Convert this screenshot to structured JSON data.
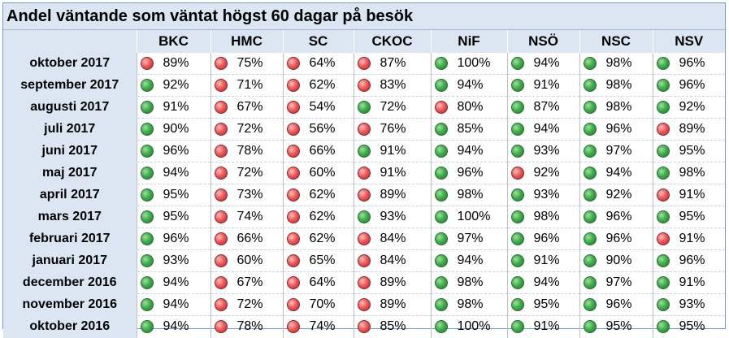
{
  "title": "Andel väntande som väntat högst 60 dagar på besök",
  "columns": [
    "BKC",
    "HMC",
    "SC",
    "CKOC",
    "NiF",
    "NSÖ",
    "NSC",
    "NSV"
  ],
  "rows": [
    {
      "month": "oktober 2017",
      "cells": [
        {
          "value": "89%",
          "status": "red"
        },
        {
          "value": "75%",
          "status": "red"
        },
        {
          "value": "64%",
          "status": "red"
        },
        {
          "value": "87%",
          "status": "red"
        },
        {
          "value": "100%",
          "status": "green"
        },
        {
          "value": "94%",
          "status": "green"
        },
        {
          "value": "98%",
          "status": "green"
        },
        {
          "value": "96%",
          "status": "green"
        }
      ]
    },
    {
      "month": "september 2017",
      "cells": [
        {
          "value": "92%",
          "status": "green"
        },
        {
          "value": "71%",
          "status": "red"
        },
        {
          "value": "62%",
          "status": "red"
        },
        {
          "value": "83%",
          "status": "red"
        },
        {
          "value": "94%",
          "status": "green"
        },
        {
          "value": "91%",
          "status": "green"
        },
        {
          "value": "98%",
          "status": "green"
        },
        {
          "value": "96%",
          "status": "green"
        }
      ]
    },
    {
      "month": "augusti 2017",
      "cells": [
        {
          "value": "91%",
          "status": "green"
        },
        {
          "value": "67%",
          "status": "red"
        },
        {
          "value": "54%",
          "status": "red"
        },
        {
          "value": "72%",
          "status": "green"
        },
        {
          "value": "80%",
          "status": "red"
        },
        {
          "value": "87%",
          "status": "green"
        },
        {
          "value": "98%",
          "status": "green"
        },
        {
          "value": "92%",
          "status": "green"
        }
      ]
    },
    {
      "month": "juli 2017",
      "cells": [
        {
          "value": "90%",
          "status": "green"
        },
        {
          "value": "72%",
          "status": "red"
        },
        {
          "value": "56%",
          "status": "red"
        },
        {
          "value": "76%",
          "status": "red"
        },
        {
          "value": "85%",
          "status": "green"
        },
        {
          "value": "94%",
          "status": "green"
        },
        {
          "value": "96%",
          "status": "green"
        },
        {
          "value": "89%",
          "status": "red"
        }
      ]
    },
    {
      "month": "juni 2017",
      "cells": [
        {
          "value": "96%",
          "status": "green"
        },
        {
          "value": "78%",
          "status": "red"
        },
        {
          "value": "66%",
          "status": "red"
        },
        {
          "value": "91%",
          "status": "green"
        },
        {
          "value": "94%",
          "status": "green"
        },
        {
          "value": "93%",
          "status": "green"
        },
        {
          "value": "97%",
          "status": "green"
        },
        {
          "value": "95%",
          "status": "green"
        }
      ]
    },
    {
      "month": "maj 2017",
      "cells": [
        {
          "value": "94%",
          "status": "green"
        },
        {
          "value": "72%",
          "status": "red"
        },
        {
          "value": "60%",
          "status": "red"
        },
        {
          "value": "91%",
          "status": "red"
        },
        {
          "value": "96%",
          "status": "green"
        },
        {
          "value": "92%",
          "status": "red"
        },
        {
          "value": "94%",
          "status": "green"
        },
        {
          "value": "98%",
          "status": "green"
        }
      ]
    },
    {
      "month": "april 2017",
      "cells": [
        {
          "value": "95%",
          "status": "green"
        },
        {
          "value": "73%",
          "status": "red"
        },
        {
          "value": "62%",
          "status": "red"
        },
        {
          "value": "89%",
          "status": "red"
        },
        {
          "value": "98%",
          "status": "green"
        },
        {
          "value": "93%",
          "status": "green"
        },
        {
          "value": "92%",
          "status": "green"
        },
        {
          "value": "91%",
          "status": "red"
        }
      ]
    },
    {
      "month": "mars 2017",
      "cells": [
        {
          "value": "95%",
          "status": "green"
        },
        {
          "value": "74%",
          "status": "red"
        },
        {
          "value": "62%",
          "status": "red"
        },
        {
          "value": "93%",
          "status": "green"
        },
        {
          "value": "100%",
          "status": "green"
        },
        {
          "value": "98%",
          "status": "green"
        },
        {
          "value": "96%",
          "status": "green"
        },
        {
          "value": "95%",
          "status": "green"
        }
      ]
    },
    {
      "month": "februari 2017",
      "cells": [
        {
          "value": "96%",
          "status": "green"
        },
        {
          "value": "66%",
          "status": "red"
        },
        {
          "value": "62%",
          "status": "red"
        },
        {
          "value": "84%",
          "status": "red"
        },
        {
          "value": "97%",
          "status": "green"
        },
        {
          "value": "96%",
          "status": "green"
        },
        {
          "value": "96%",
          "status": "green"
        },
        {
          "value": "91%",
          "status": "red"
        }
      ]
    },
    {
      "month": "januari 2017",
      "cells": [
        {
          "value": "93%",
          "status": "green"
        },
        {
          "value": "60%",
          "status": "red"
        },
        {
          "value": "65%",
          "status": "red"
        },
        {
          "value": "84%",
          "status": "red"
        },
        {
          "value": "94%",
          "status": "green"
        },
        {
          "value": "91%",
          "status": "green"
        },
        {
          "value": "90%",
          "status": "green"
        },
        {
          "value": "96%",
          "status": "green"
        }
      ]
    },
    {
      "month": "december 2016",
      "cells": [
        {
          "value": "94%",
          "status": "green"
        },
        {
          "value": "67%",
          "status": "red"
        },
        {
          "value": "64%",
          "status": "red"
        },
        {
          "value": "89%",
          "status": "red"
        },
        {
          "value": "98%",
          "status": "green"
        },
        {
          "value": "94%",
          "status": "green"
        },
        {
          "value": "97%",
          "status": "green"
        },
        {
          "value": "91%",
          "status": "green"
        }
      ]
    },
    {
      "month": "november 2016",
      "cells": [
        {
          "value": "94%",
          "status": "green"
        },
        {
          "value": "72%",
          "status": "red"
        },
        {
          "value": "70%",
          "status": "red"
        },
        {
          "value": "89%",
          "status": "red"
        },
        {
          "value": "98%",
          "status": "green"
        },
        {
          "value": "95%",
          "status": "green"
        },
        {
          "value": "96%",
          "status": "green"
        },
        {
          "value": "93%",
          "status": "green"
        }
      ]
    },
    {
      "month": "oktober 2016",
      "cells": [
        {
          "value": "94%",
          "status": "green"
        },
        {
          "value": "78%",
          "status": "red"
        },
        {
          "value": "74%",
          "status": "red"
        },
        {
          "value": "85%",
          "status": "red"
        },
        {
          "value": "100%",
          "status": "green"
        },
        {
          "value": "91%",
          "status": "green"
        },
        {
          "value": "95%",
          "status": "green"
        },
        {
          "value": "95%",
          "status": "green"
        }
      ]
    }
  ],
  "colors": {
    "header_bg": "#dce6f2",
    "border_blue": "#6f9ad6",
    "status_green": "#3fae4a",
    "status_red": "#ee5a5a"
  }
}
